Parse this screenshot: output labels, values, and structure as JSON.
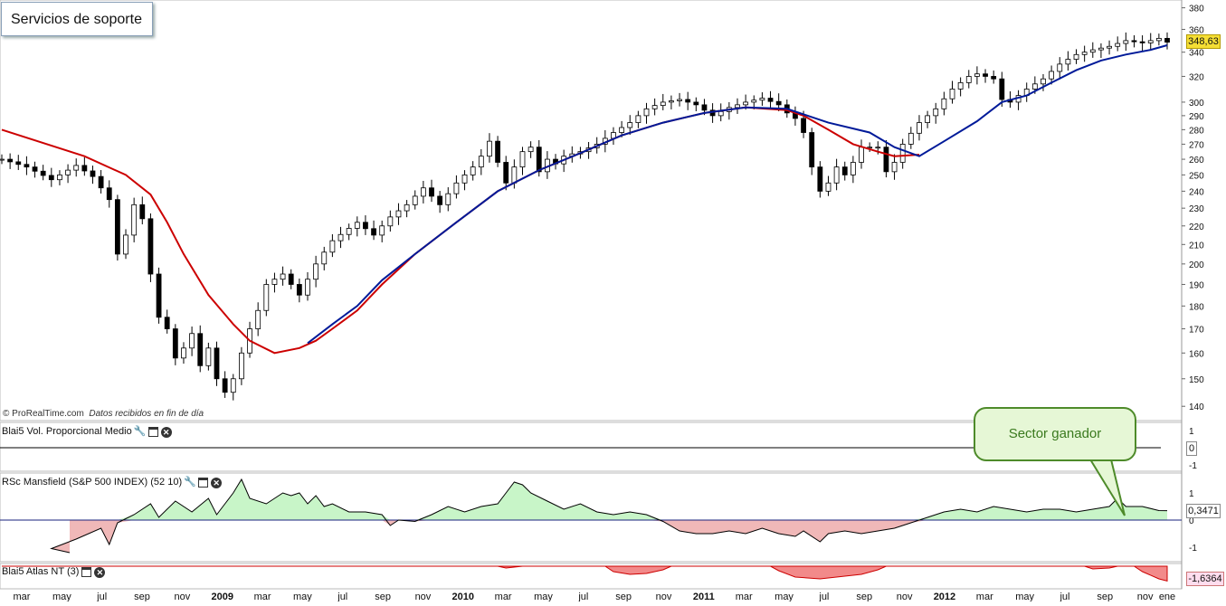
{
  "title": "Servicios de soporte",
  "credit": {
    "symbol": "©",
    "source": "ProRealTime.com",
    "note": "Datos recibidos en fin de día"
  },
  "colors": {
    "ma_fast": "#cc0000",
    "ma_slow": "#001a99",
    "area_pos": "#c8f5c8",
    "area_neg": "#f0b8b8",
    "callout_border": "#4e8b2a"
  },
  "icons": [
    "wrench-icon",
    "window-icon",
    "close-icon"
  ],
  "chart_data": {
    "type": "candlestick",
    "price_axis": {
      "ticks": [
        140,
        150,
        160,
        170,
        180,
        190,
        200,
        210,
        220,
        230,
        240,
        250,
        260,
        270,
        280,
        290,
        300,
        320,
        340,
        360,
        380
      ],
      "ylim": [
        136,
        384
      ],
      "log": true
    },
    "last_price_label": "348,63",
    "x_tick_labels": [
      "mar",
      "may",
      "jul",
      "sep",
      "nov",
      "2009",
      "mar",
      "may",
      "jul",
      "sep",
      "nov",
      "2010",
      "mar",
      "may",
      "jul",
      "sep",
      "nov",
      "2011",
      "mar",
      "may",
      "jul",
      "sep",
      "nov",
      "2012",
      "mar",
      "may",
      "jul",
      "sep",
      "nov",
      "ene"
    ],
    "price_path": [
      [
        0,
        260
      ],
      [
        3,
        255
      ],
      [
        6,
        247
      ],
      [
        9,
        256
      ],
      [
        11,
        249
      ],
      [
        13,
        235
      ],
      [
        14,
        205
      ],
      [
        15,
        215
      ],
      [
        16,
        232
      ],
      [
        17,
        224
      ],
      [
        18,
        195
      ],
      [
        19,
        175
      ],
      [
        20,
        170
      ],
      [
        21,
        158
      ],
      [
        22,
        162
      ],
      [
        23,
        168
      ],
      [
        24,
        155
      ],
      [
        25,
        162
      ],
      [
        26,
        150
      ],
      [
        27,
        145
      ],
      [
        28,
        150
      ],
      [
        29,
        160
      ],
      [
        30,
        170
      ],
      [
        31,
        178
      ],
      [
        32,
        190
      ],
      [
        34,
        195
      ],
      [
        36,
        185
      ],
      [
        38,
        200
      ],
      [
        40,
        212
      ],
      [
        43,
        222
      ],
      [
        45,
        215
      ],
      [
        47,
        225
      ],
      [
        49,
        232
      ],
      [
        51,
        242
      ],
      [
        53,
        232
      ],
      [
        55,
        245
      ],
      [
        57,
        255
      ],
      [
        58,
        262
      ],
      [
        59,
        272
      ],
      [
        60,
        258
      ],
      [
        61,
        245
      ],
      [
        62,
        255
      ],
      [
        63,
        265
      ],
      [
        64,
        268
      ],
      [
        65,
        252
      ],
      [
        66,
        260
      ],
      [
        67,
        257
      ],
      [
        68,
        262
      ],
      [
        70,
        265
      ],
      [
        72,
        270
      ],
      [
        74,
        278
      ],
      [
        76,
        285
      ],
      [
        78,
        295
      ],
      [
        80,
        300
      ],
      [
        82,
        302
      ],
      [
        84,
        298
      ],
      [
        86,
        290
      ],
      [
        88,
        296
      ],
      [
        90,
        300
      ],
      [
        92,
        303
      ],
      [
        94,
        298
      ],
      [
        95,
        292
      ],
      [
        96,
        288
      ],
      [
        97,
        278
      ],
      [
        98,
        255
      ],
      [
        99,
        240
      ],
      [
        100,
        245
      ],
      [
        101,
        255
      ],
      [
        102,
        250
      ],
      [
        103,
        258
      ],
      [
        104,
        268
      ],
      [
        106,
        268
      ],
      [
        107,
        252
      ],
      [
        108,
        258
      ],
      [
        109,
        270
      ],
      [
        111,
        285
      ],
      [
        113,
        295
      ],
      [
        115,
        310
      ],
      [
        117,
        320
      ],
      [
        118,
        322
      ],
      [
        120,
        318
      ],
      [
        121,
        302
      ],
      [
        122,
        300
      ],
      [
        124,
        310
      ],
      [
        126,
        318
      ],
      [
        128,
        330
      ],
      [
        130,
        338
      ],
      [
        132,
        342
      ],
      [
        134,
        345
      ],
      [
        136,
        350
      ],
      [
        138,
        348
      ],
      [
        140,
        352
      ],
      [
        141,
        348.63
      ]
    ],
    "ma_red": [
      [
        0,
        280
      ],
      [
        10,
        262
      ],
      [
        15,
        250
      ],
      [
        18,
        238
      ],
      [
        20,
        222
      ],
      [
        22,
        205
      ],
      [
        25,
        185
      ],
      [
        28,
        172
      ],
      [
        30,
        165
      ],
      [
        33,
        160
      ],
      [
        36,
        162
      ],
      [
        38,
        165
      ],
      [
        40,
        170
      ],
      [
        43,
        178
      ],
      [
        46,
        190
      ],
      [
        50,
        205
      ],
      [
        55,
        222
      ],
      [
        60,
        240
      ],
      [
        65,
        253
      ],
      [
        70,
        264
      ],
      [
        75,
        276
      ],
      [
        80,
        285
      ],
      [
        85,
        292
      ],
      [
        90,
        296
      ],
      [
        95,
        294
      ],
      [
        97,
        290
      ],
      [
        100,
        280
      ],
      [
        103,
        270
      ],
      [
        106,
        265
      ],
      [
        108,
        262
      ],
      [
        111,
        263
      ]
    ],
    "ma_blue": [
      [
        37,
        164
      ],
      [
        40,
        172
      ],
      [
        43,
        180
      ],
      [
        46,
        192
      ],
      [
        50,
        205
      ],
      [
        55,
        222
      ],
      [
        60,
        240
      ],
      [
        65,
        253
      ],
      [
        70,
        264
      ],
      [
        75,
        276
      ],
      [
        80,
        285
      ],
      [
        85,
        292
      ],
      [
        90,
        296
      ],
      [
        95,
        295
      ],
      [
        100,
        285
      ],
      [
        105,
        278
      ],
      [
        108,
        268
      ],
      [
        111,
        262
      ],
      [
        114,
        272
      ],
      [
        118,
        286
      ],
      [
        121,
        300
      ],
      [
        124,
        305
      ],
      [
        127,
        315
      ],
      [
        130,
        325
      ],
      [
        133,
        333
      ],
      [
        136,
        338
      ],
      [
        139,
        342
      ],
      [
        141,
        346
      ]
    ],
    "indicators": [
      {
        "label": "Blai5 Vol. Proporcional Medio",
        "ticks": [
          "1",
          "0",
          "-1"
        ],
        "value_label": "0"
      },
      {
        "label": "RSc Mansfield (S&P 500 INDEX) (52 10)",
        "ticks": [
          "1",
          "0",
          "-1"
        ],
        "value_label": "0,3471",
        "series": [
          [
            0,
            -1.2
          ],
          [
            6,
            -1.05
          ],
          [
            9,
            -0.7
          ],
          [
            12,
            -0.3
          ],
          [
            13,
            -0.9
          ],
          [
            14,
            -0.1
          ],
          [
            16,
            0.2
          ],
          [
            18,
            0.6
          ],
          [
            19,
            0.1
          ],
          [
            21,
            0.7
          ],
          [
            23,
            0.3
          ],
          [
            25,
            0.8
          ],
          [
            26,
            0.2
          ],
          [
            27,
            0.6
          ],
          [
            28,
            1.0
          ],
          [
            29,
            1.5
          ],
          [
            30,
            0.8
          ],
          [
            32,
            0.6
          ],
          [
            34,
            1.0
          ],
          [
            35,
            0.9
          ],
          [
            36,
            1.0
          ],
          [
            37,
            0.6
          ],
          [
            38,
            0.9
          ],
          [
            39,
            0.5
          ],
          [
            40,
            0.6
          ],
          [
            42,
            0.3
          ],
          [
            44,
            0.3
          ],
          [
            46,
            0.2
          ],
          [
            47,
            -0.2
          ],
          [
            48,
            0.0
          ],
          [
            50,
            -0.05
          ],
          [
            52,
            0.2
          ],
          [
            54,
            0.5
          ],
          [
            56,
            0.3
          ],
          [
            58,
            0.5
          ],
          [
            60,
            0.6
          ],
          [
            61,
            1.0
          ],
          [
            62,
            1.4
          ],
          [
            63,
            1.3
          ],
          [
            64,
            1.0
          ],
          [
            66,
            0.7
          ],
          [
            68,
            0.4
          ],
          [
            70,
            0.6
          ],
          [
            72,
            0.3
          ],
          [
            74,
            0.2
          ],
          [
            76,
            0.3
          ],
          [
            78,
            0.2
          ],
          [
            80,
            -0.05
          ],
          [
            82,
            -0.4
          ],
          [
            84,
            -0.5
          ],
          [
            86,
            -0.5
          ],
          [
            88,
            -0.4
          ],
          [
            90,
            -0.5
          ],
          [
            92,
            -0.3
          ],
          [
            94,
            -0.5
          ],
          [
            96,
            -0.6
          ],
          [
            97,
            -0.4
          ],
          [
            99,
            -0.8
          ],
          [
            100,
            -0.5
          ],
          [
            102,
            -0.4
          ],
          [
            104,
            -0.5
          ],
          [
            106,
            -0.4
          ],
          [
            108,
            -0.3
          ],
          [
            110,
            -0.1
          ],
          [
            112,
            0.1
          ],
          [
            114,
            0.3
          ],
          [
            116,
            0.4
          ],
          [
            118,
            0.3
          ],
          [
            120,
            0.5
          ],
          [
            122,
            0.4
          ],
          [
            124,
            0.3
          ],
          [
            126,
            0.4
          ],
          [
            128,
            0.4
          ],
          [
            130,
            0.3
          ],
          [
            132,
            0.4
          ],
          [
            134,
            0.5
          ],
          [
            135,
            0.8
          ],
          [
            136,
            0.5
          ],
          [
            138,
            0.5
          ],
          [
            140,
            0.35
          ],
          [
            141,
            0.3471
          ]
        ]
      },
      {
        "label": "Blai5 Atlas NT (3)",
        "ticks": [],
        "value_label": "-1,6364",
        "series": [
          [
            0,
            0
          ],
          [
            60,
            0
          ],
          [
            61,
            -0.2
          ],
          [
            62,
            -0.1
          ],
          [
            63,
            0
          ],
          [
            73,
            0
          ],
          [
            74,
            -0.6
          ],
          [
            76,
            -0.9
          ],
          [
            78,
            -0.8
          ],
          [
            80,
            -0.4
          ],
          [
            81,
            0
          ],
          [
            93,
            0
          ],
          [
            94,
            -0.5
          ],
          [
            96,
            -1.2
          ],
          [
            99,
            -1.4
          ],
          [
            102,
            -1.1
          ],
          [
            104,
            -0.9
          ],
          [
            106,
            -0.4
          ],
          [
            107,
            0
          ],
          [
            131,
            0
          ],
          [
            132,
            -0.3
          ],
          [
            134,
            -0.2
          ],
          [
            135,
            0
          ],
          [
            137,
            0
          ],
          [
            138,
            -0.6
          ],
          [
            140,
            -1.4
          ],
          [
            141,
            -1.6364
          ]
        ]
      }
    ]
  },
  "annotation": {
    "text": "Sector ganador"
  }
}
